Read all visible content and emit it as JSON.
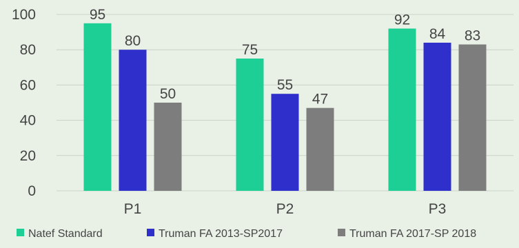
{
  "chart_data": {
    "type": "bar",
    "title": "",
    "xlabel": "",
    "ylabel": "",
    "categories": [
      "P1",
      "P2",
      "P3"
    ],
    "ylim": [
      0,
      100
    ],
    "yticks": [
      0,
      20,
      40,
      60,
      80,
      100
    ],
    "grid": true,
    "legend_position": "bottom",
    "series": [
      {
        "name": "Natef Standard",
        "color": "#1dcf95",
        "values": [
          95,
          75,
          92
        ]
      },
      {
        "name": "Truman FA 2013-SP2017",
        "color": "#2f2fcb",
        "values": [
          80,
          55,
          84
        ]
      },
      {
        "name": "Truman FA 2017-SP 2018",
        "color": "#7d7d7d",
        "values": [
          50,
          47,
          83
        ]
      }
    ]
  },
  "colors": {
    "background": "#e9f1e6",
    "gridline": "#c9d2c6",
    "axis_text": "#444444"
  }
}
